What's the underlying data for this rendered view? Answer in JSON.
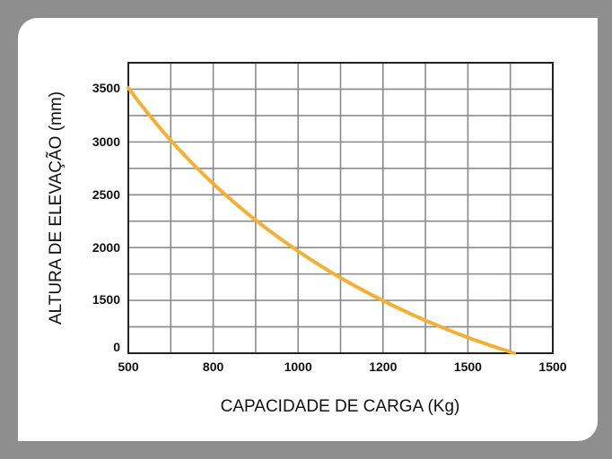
{
  "chart_data": {
    "type": "line",
    "xlabel": "CAPACIDADE DE CARGA (Kg)",
    "ylabel": "ALTURA DE ELEVAÇÃO (mm)",
    "x_tick_labels": [
      "500",
      "800",
      "1000",
      "1200",
      "1500",
      "1500"
    ],
    "y_tick_labels": [
      "0",
      "1500",
      "2000",
      "2500",
      "3000",
      "3500"
    ],
    "grid": true,
    "colors": {
      "line": "#f2b134",
      "grid": "#8a8a8a",
      "frame": "#222222",
      "background": "#8e8e8e"
    },
    "series": [
      {
        "values": [
          {
            "x": 500,
            "y": 3500
          },
          {
            "x": 800,
            "y": 2630
          },
          {
            "x": 1000,
            "y": 2000
          },
          {
            "x": 1200,
            "y": 1560
          },
          {
            "x": 1500,
            "y": 0
          },
          {
            "x": 1500,
            "y": 0
          }
        ]
      }
    ]
  }
}
